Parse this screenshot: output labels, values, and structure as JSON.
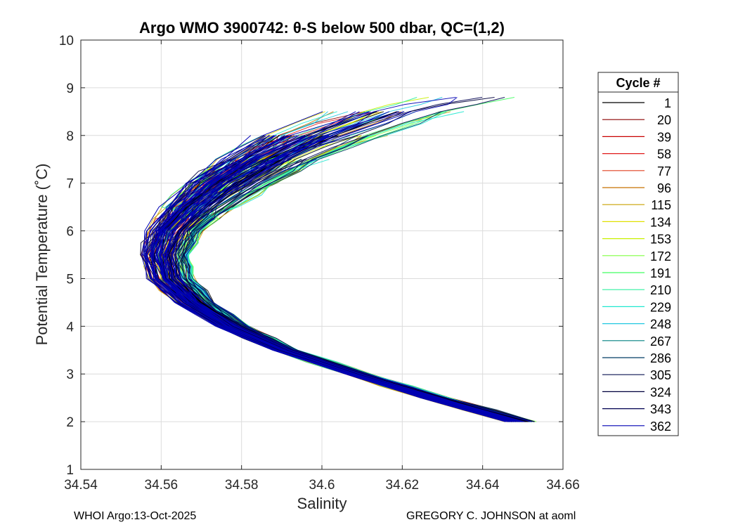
{
  "chart_data": {
    "type": "line",
    "title": "Argo WMO 3900742: θ-S below 500 dbar,  QC=(1,2)",
    "xlabel": "Salinity",
    "ylabel": "Potential Temperature (˚C)",
    "xlim": [
      34.54,
      34.66
    ],
    "ylim": [
      1,
      10
    ],
    "xticks": [
      "34.54",
      "34.56",
      "34.58",
      "34.6",
      "34.62",
      "34.64",
      "34.66"
    ],
    "yticks": [
      "1",
      "2",
      "3",
      "4",
      "5",
      "6",
      "7",
      "8",
      "9",
      "10"
    ],
    "grid": true,
    "legend": {
      "title": "Cycle #",
      "placement": "right-outside",
      "entries": [
        "1",
        "20",
        "39",
        "58",
        "77",
        "96",
        "115",
        "134",
        "153",
        "172",
        "191",
        "210",
        "229",
        "248",
        "267",
        "286",
        "305",
        "324",
        "343",
        "362"
      ],
      "colors": [
        "#000000",
        "#8b0000",
        "#c80000",
        "#e01a1a",
        "#e04020",
        "#c87000",
        "#c8a000",
        "#e0e000",
        "#c8f000",
        "#80ff40",
        "#40ff60",
        "#30f0a0",
        "#20e8d0",
        "#20c8e0",
        "#008080",
        "#003c64",
        "#0a1450",
        "#00003c",
        "#000050",
        "#0000b4"
      ]
    },
    "series_envelope": {
      "description_axis": "theta",
      "theta": [
        2.0,
        2.5,
        3.0,
        3.5,
        4.0,
        4.5,
        5.0,
        5.5,
        6.0,
        6.5,
        7.0,
        7.5,
        8.0,
        8.5,
        8.8
      ],
      "salinity_left": [
        34.646,
        34.625,
        34.606,
        34.588,
        34.574,
        34.564,
        34.557,
        34.555,
        34.557,
        34.561,
        34.567,
        34.575,
        34.585,
        34.6,
        34.612
      ],
      "salinity_right": [
        34.653,
        34.632,
        34.612,
        34.594,
        34.582,
        34.573,
        34.568,
        34.567,
        34.57,
        34.578,
        34.588,
        34.6,
        34.615,
        34.633,
        34.65
      ]
    }
  },
  "footer": {
    "left": "WHOI Argo:13-Oct-2025",
    "right": "GREGORY C. JOHNSON at aoml"
  }
}
